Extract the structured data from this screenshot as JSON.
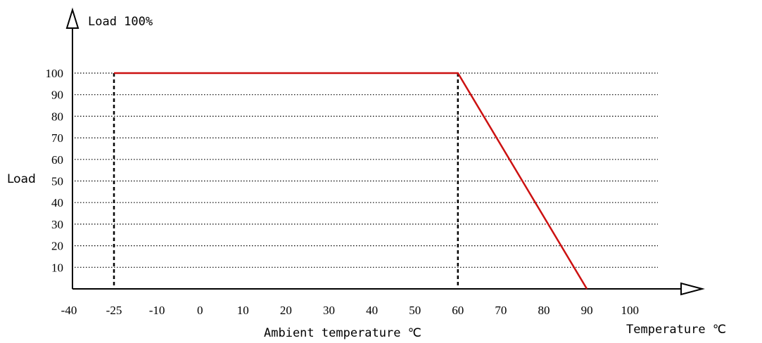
{
  "chart_data": {
    "type": "line",
    "title": "",
    "y_axis_title": "Load 100%",
    "ylabel": "Load",
    "xlabel": "Ambient temperature ℃",
    "x_axis_end_label": "Temperature ℃",
    "x_ticks": [
      "-40",
      "-25",
      "-10",
      "0",
      "10",
      "20",
      "30",
      "40",
      "50",
      "60",
      "70",
      "80",
      "90",
      "100"
    ],
    "y_ticks": [
      "10",
      "20",
      "30",
      "40",
      "50",
      "60",
      "70",
      "80",
      "90",
      "100"
    ],
    "series": [
      {
        "color": "#cc1111",
        "points": [
          {
            "x": -25,
            "y": 100
          },
          {
            "x": 60,
            "y": 100
          },
          {
            "x": 90,
            "y": 0
          }
        ]
      }
    ],
    "reference_lines_x": [
      -25,
      60
    ],
    "ylim": [
      0,
      110
    ],
    "grid": "horizontal dotted",
    "colors": {
      "line": "#cc1111",
      "axis": "#000000",
      "grid": "#000000"
    }
  }
}
